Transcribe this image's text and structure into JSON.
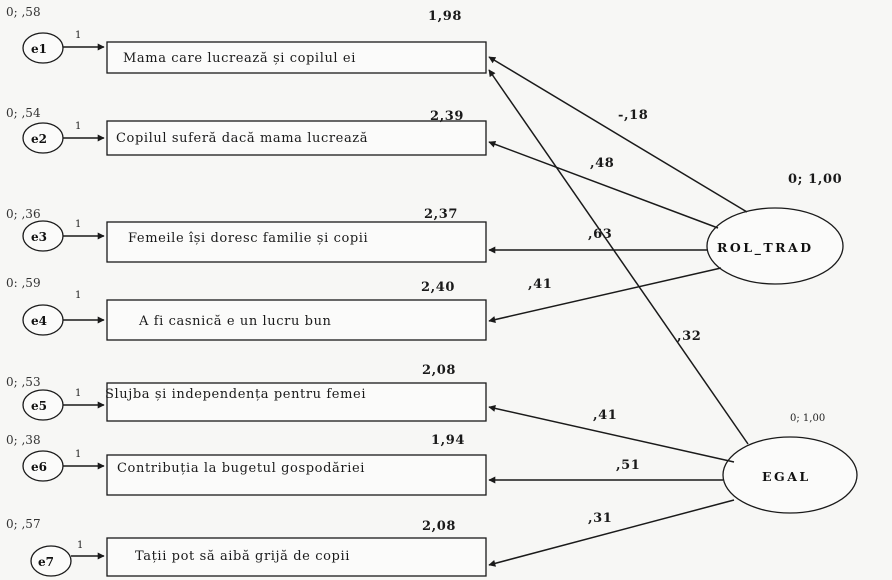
{
  "indicators": [
    {
      "error": "e1",
      "error_var": "0; ,58",
      "one": "1",
      "intercept": "1,98",
      "label": "Mama care lucrează și copilul ei"
    },
    {
      "error": "e2",
      "error_var": "0; ,54",
      "one": "1",
      "intercept": "2,39",
      "label": "Copilul suferă dacă mama lucrează"
    },
    {
      "error": "e3",
      "error_var": "0; ,36",
      "one": "1",
      "intercept": "2,37",
      "label": "Femeile își doresc familie și copii"
    },
    {
      "error": "e4",
      "error_var": "0: ,59",
      "one": "1",
      "intercept": "2,40",
      "label": "A fi casnică e un lucru bun"
    },
    {
      "error": "e5",
      "error_var": "0; ,53",
      "one": "1",
      "intercept": "2,08",
      "label": "Slujba și independența pentru femei"
    },
    {
      "error": "e6",
      "error_var": "0; ,38",
      "one": "1",
      "intercept": "1,94",
      "label": "Contribuția la bugetul gospodăriei"
    },
    {
      "error": "e7",
      "error_var": "0; ,57",
      "one": "1",
      "intercept": "2,08",
      "label": "Tații pot să aibă grijă de copii"
    }
  ],
  "latents": [
    {
      "name": "ROL_TRAD",
      "variance": "0; 1,00"
    },
    {
      "name": "EGAL",
      "variance": "0; 1,00"
    }
  ],
  "loadings": [
    {
      "from": "ROL_TRAD",
      "to": "e1",
      "value": "-,18"
    },
    {
      "from": "ROL_TRAD",
      "to": "e2",
      "value": ",48"
    },
    {
      "from": "ROL_TRAD",
      "to": "e3",
      "value": ",63"
    },
    {
      "from": "ROL_TRAD",
      "to": "e4",
      "value": ",41"
    },
    {
      "from": "EGAL",
      "to": "e1",
      "value": ",32"
    },
    {
      "from": "EGAL",
      "to": "e5",
      "value": ",41"
    },
    {
      "from": "EGAL",
      "to": "e6",
      "value": ",51"
    },
    {
      "from": "EGAL",
      "to": "e7",
      "value": ",31"
    }
  ]
}
